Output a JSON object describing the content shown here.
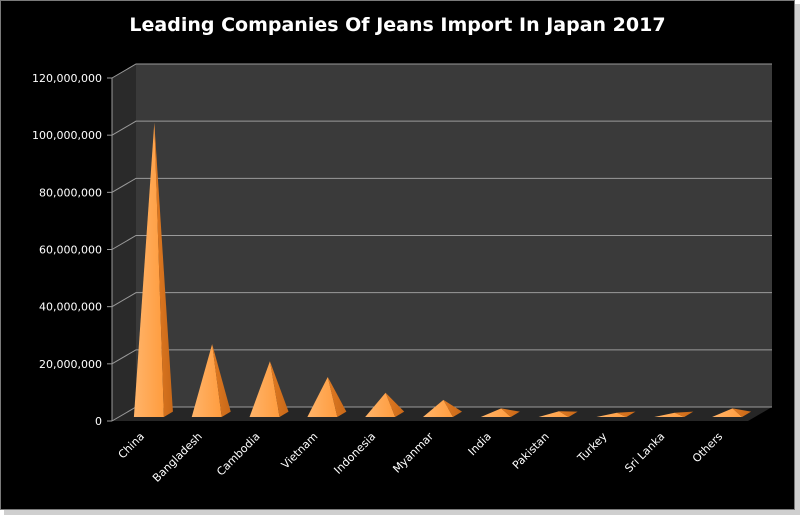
{
  "chart_data": {
    "type": "bar",
    "title": "Leading Companies Of Jeans Import In Japan 2017",
    "xlabel": "",
    "ylabel": "",
    "categories": [
      "China",
      "Bangladesh",
      "Cambodia",
      "Vietnam",
      "Indonesia",
      "Myanmar",
      "India",
      "Pakistan",
      "Turkey",
      "Sri Lanka",
      "Others"
    ],
    "values": [
      103000000,
      25500000,
      19500000,
      14000000,
      8500000,
      6000000,
      3000000,
      2000000,
      1500000,
      1500000,
      3000000
    ],
    "ylim": [
      0,
      120000000
    ],
    "yticks": [
      "0",
      "20,000,000",
      "40,000,000",
      "60,000,000",
      "80,000,000",
      "100,000,000",
      "120,000,000"
    ],
    "ytick_values": [
      0,
      20000000,
      40000000,
      60000000,
      80000000,
      100000000,
      120000000
    ],
    "bar_shape": "3d-pyramid",
    "grid": true,
    "legend": "none",
    "colors": {
      "background": "#000000",
      "plot_wall": "#3a3a3a",
      "side_wall": "#2a2a2a",
      "floor": "#262626",
      "gridline": "#9a9a9a",
      "bar_light": "#ffb46a",
      "bar_dark": "#e07a22",
      "text": "#ffffff"
    }
  }
}
